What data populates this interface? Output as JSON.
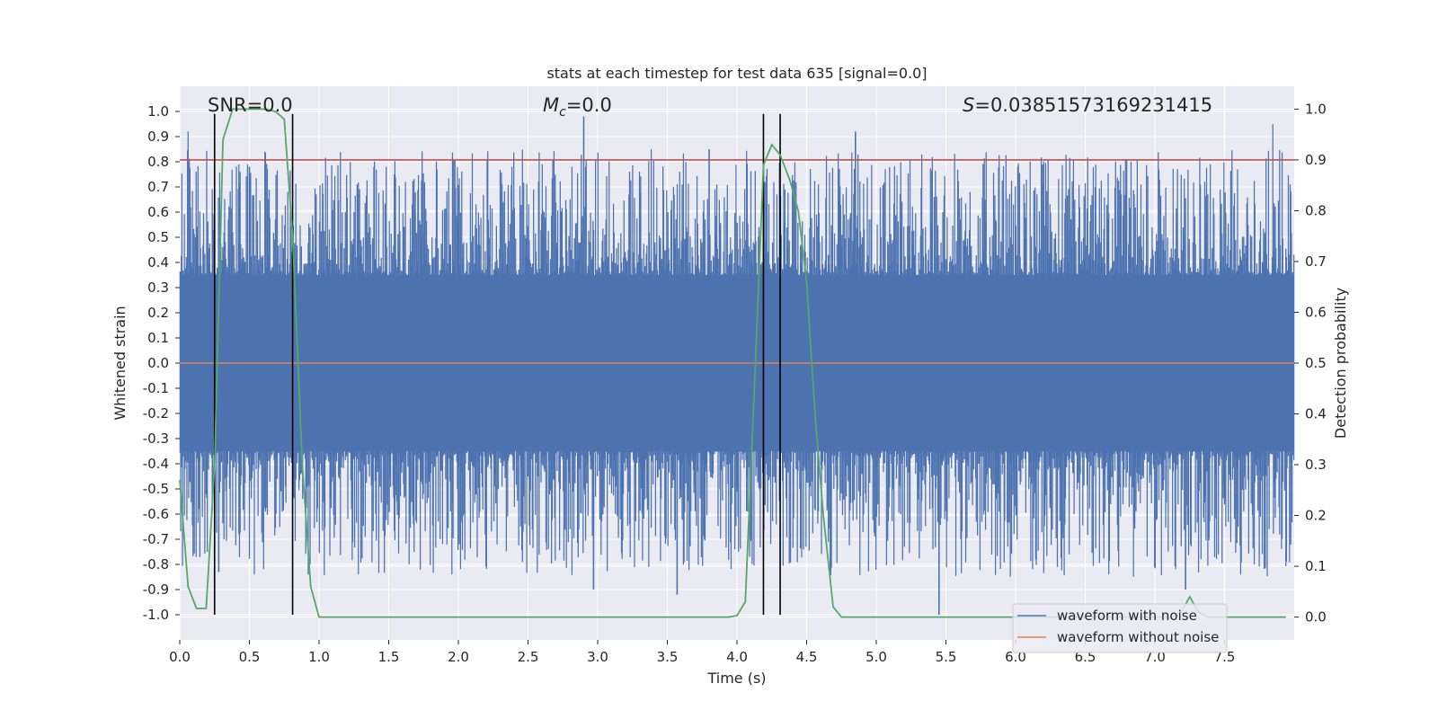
{
  "chart_data": {
    "type": "line",
    "title": "stats at each timestep for test data 635 [signal=0.0]",
    "xlabel": "Time (s)",
    "ylabel": "Whitened strain",
    "y2label": "Detection probability",
    "xlim": [
      0.0,
      8.0
    ],
    "ylim": [
      -1.1,
      1.1
    ],
    "y2lim": [
      -0.045,
      1.045
    ],
    "xticks": [
      "0.0",
      "0.5",
      "1.0",
      "1.5",
      "2.0",
      "2.5",
      "3.0",
      "3.5",
      "4.0",
      "4.5",
      "5.0",
      "5.5",
      "6.0",
      "6.5",
      "7.0",
      "7.5"
    ],
    "yticks": [
      "1.0",
      "0.9",
      "0.8",
      "0.7",
      "0.6",
      "0.5",
      "0.4",
      "0.3",
      "0.2",
      "0.1",
      "0.0",
      "-0.1",
      "-0.2",
      "-0.3",
      "-0.4",
      "-0.5",
      "-0.6",
      "-0.7",
      "-0.8",
      "-0.9",
      "-1.0"
    ],
    "y2ticks": [
      "1.0",
      "0.9",
      "0.8",
      "0.7",
      "0.6",
      "0.5",
      "0.4",
      "0.3",
      "0.2",
      "0.1",
      "0.0"
    ],
    "grid": true,
    "annotations": {
      "snr": "SNR=0.0",
      "mc_symbol": "M",
      "mc_sub": "c",
      "mc_value": "=0.0",
      "s_symbol": "S",
      "s_value": "=0.03851573169231415"
    },
    "legend": {
      "placement": "lower-right",
      "items": [
        {
          "label": "waveform with noise",
          "color": "#4c72b0"
        },
        {
          "label": "waveform without noise",
          "color": "#dd8452"
        }
      ]
    },
    "threshold": {
      "y2": 0.9,
      "color": "#c44e52"
    },
    "vertical_lines": [
      0.25,
      0.81,
      4.19,
      4.31
    ],
    "series": [
      {
        "name": "waveform with noise",
        "color": "#4c72b0",
        "axis": "left",
        "kind": "noise",
        "core_amplitude": 0.35,
        "peaks": [
          [
            2.9,
            0.98
          ],
          [
            4.2,
            0.72
          ],
          [
            5.45,
            -1.0
          ],
          [
            7.22,
            -0.9
          ],
          [
            2.97,
            -0.9
          ],
          [
            3.57,
            -0.92
          ],
          [
            0.5,
            0.78
          ],
          [
            3.8,
            0.85
          ],
          [
            4.85,
            0.92
          ],
          [
            0.28,
            -0.83
          ]
        ]
      },
      {
        "name": "waveform without noise",
        "color": "#dd8452",
        "axis": "left",
        "values": "constant 0.0"
      },
      {
        "color": "#55a868",
        "axis": "right",
        "x": [
          0.0,
          0.06,
          0.12,
          0.19,
          0.25,
          0.31,
          0.38,
          0.44,
          0.5,
          0.56,
          0.62,
          0.69,
          0.75,
          0.81,
          0.88,
          0.94,
          1.0,
          1.06,
          3.88,
          3.94,
          4.0,
          4.06,
          4.12,
          4.19,
          4.25,
          4.31,
          4.38,
          4.44,
          4.5,
          4.56,
          4.62,
          4.69,
          4.75,
          4.81,
          7.12,
          7.19,
          7.25,
          7.31,
          7.38,
          7.94
        ],
        "y": [
          0.27,
          0.06,
          0.017,
          0.017,
          0.3,
          0.94,
          1.0,
          1.0,
          1.0,
          1.0,
          1.0,
          0.995,
          0.98,
          0.75,
          0.3,
          0.06,
          0.0,
          0.0,
          0.0,
          0.0,
          0.003,
          0.03,
          0.42,
          0.89,
          0.93,
          0.91,
          0.86,
          0.8,
          0.66,
          0.4,
          0.2,
          0.02,
          0.0,
          0.0,
          0.0,
          0.01,
          0.04,
          0.01,
          0.0,
          0.0
        ]
      }
    ]
  }
}
